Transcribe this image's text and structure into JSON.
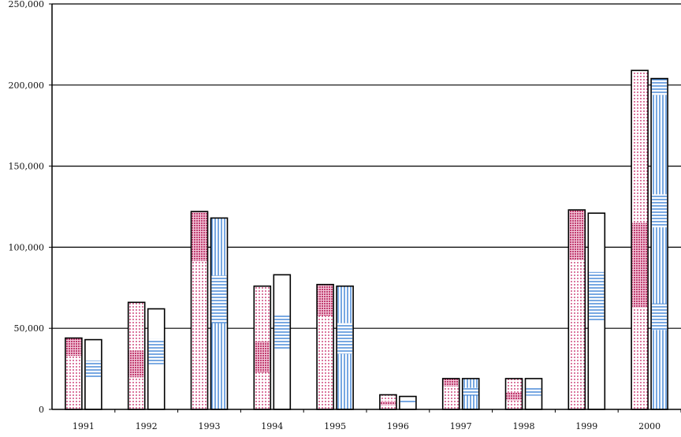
{
  "chart_data": {
    "type": "bar",
    "title": "",
    "xlabel": "",
    "ylabel": "",
    "categories": [
      "1991",
      "1992",
      "1993",
      "1994",
      "1995",
      "1996",
      "1997",
      "1998",
      "1999",
      "2000"
    ],
    "series": [
      {
        "values": [
          44000,
          66000,
          122000,
          76000,
          77000,
          9000,
          19000,
          19000,
          123000,
          209000
        ]
      },
      {
        "values": [
          43000,
          62000,
          118000,
          83000,
          76000,
          8000,
          19000,
          19000,
          121000,
          204000
        ]
      }
    ],
    "ylim": [
      0,
      250000
    ],
    "y_ticks": [
      0,
      50000,
      100000,
      150000,
      200000,
      250000
    ],
    "y_tick_labels": [
      "0",
      "50,000",
      "100,000",
      "150,000",
      "200,000",
      "250,000"
    ],
    "grid": true,
    "colors": {
      "pink": "#c2185b",
      "blue": "#1e6fd0",
      "axis": "#000000"
    }
  }
}
